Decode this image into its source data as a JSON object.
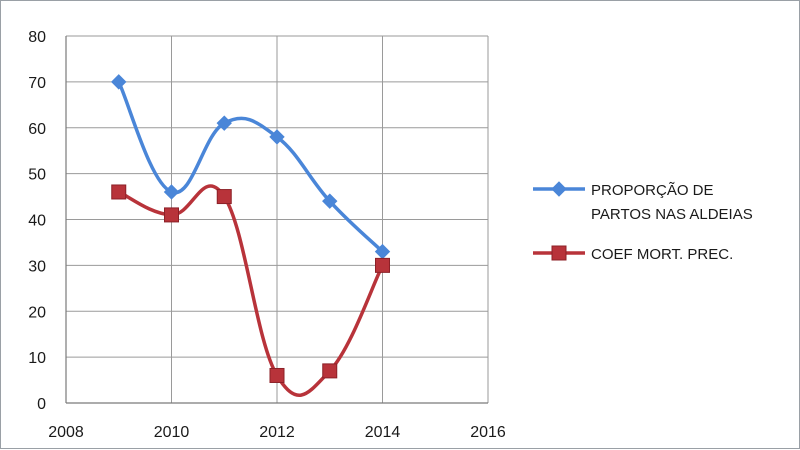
{
  "chart_data": {
    "type": "line",
    "title": "",
    "xlabel": "",
    "ylabel": "",
    "xlim": [
      2008,
      2016
    ],
    "ylim": [
      0,
      80
    ],
    "x_ticks": [
      2008,
      2010,
      2012,
      2014,
      2016
    ],
    "y_ticks": [
      0,
      10,
      20,
      30,
      40,
      50,
      60,
      70,
      80
    ],
    "grid": true,
    "smooth": true,
    "legend_position": "right",
    "series": [
      {
        "name": "PROPORÇÃO DE PARTOS NAS ALDEIAS",
        "legend_lines": [
          "PROPORÇÃO DE",
          "PARTOS NAS ALDEIAS"
        ],
        "color": "#4a86d8",
        "marker": "diamond",
        "x": [
          2009,
          2010,
          2011,
          2012,
          2013,
          2014
        ],
        "y": [
          70,
          46,
          61,
          58,
          44,
          33
        ]
      },
      {
        "name": "COEF MORT. PREC.",
        "legend_lines": [
          "COEF MORT. PREC."
        ],
        "color": "#b8333a",
        "marker": "square",
        "x": [
          2009,
          2010,
          2011,
          2012,
          2013,
          2014
        ],
        "y": [
          46,
          41,
          45,
          6,
          7,
          30
        ]
      }
    ]
  }
}
